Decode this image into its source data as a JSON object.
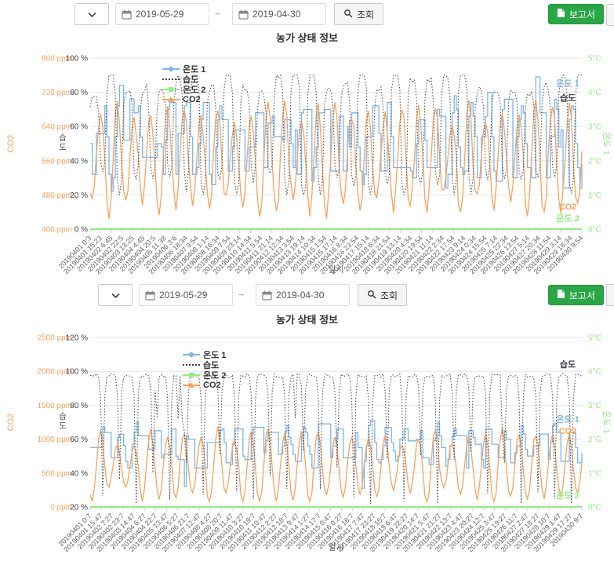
{
  "toolbar": {
    "date_from": "2019-05-29",
    "date_separator": "~",
    "date_to": "2019-04-30",
    "search_label": "조회",
    "report_label": "보고서",
    "report_color": "#28a745"
  },
  "chart_data": [
    {
      "type": "line",
      "title": "농가 상태 정보",
      "xlabel": "일시",
      "grid_color": "#e6e6e6",
      "tick_color": "#ccd6eb",
      "x_label_color": "#666666",
      "points_per_day": 8,
      "num_points": 236,
      "x_categories": [
        "20190401 0:3",
        "20190401 15:23",
        "20190402 6:45",
        "20190402 22:5",
        "20190403 13:25",
        "20190404 4:45",
        "20190404 20:5",
        "20190405 11:38",
        "20190406 3:6",
        "20190406 18:34",
        "20190407 9:54",
        "20190408 1:14",
        "20190408 16:34",
        "20190409 7:54",
        "20190409 23:14",
        "20190410 14:34",
        "20190411 5:54",
        "20190411 21:14",
        "20190412 12:34",
        "20190413 3:54",
        "20190413 19:14",
        "20190414 10:34",
        "20190415 1:54",
        "20190415 17:14",
        "20190416 8:34",
        "20190416 23:54",
        "20190417 15:14",
        "20190418 6:34",
        "20190418 21:54",
        "20190419 13:14",
        "20190420 4:34",
        "20190420 19:54",
        "20190421 11:14",
        "20190422 2:34",
        "20190422 17:54",
        "20190423 9:14",
        "20190424 0:34",
        "20190424 15:54",
        "20190425 7:14",
        "20190425 22:34",
        "20190426 13:54",
        "20190427 5:14",
        "20190427 20:34",
        "20190428 11:54",
        "20190429 3:14",
        "20190429 18:34",
        "20190430 9:54"
      ],
      "y_axes": [
        {
          "id": "co2",
          "side": "left",
          "title": "CO2",
          "color": "#f7a35c",
          "ticks": [
            "800 ppm",
            "720 ppm",
            "640 ppm",
            "560 ppm",
            "480 ppm",
            "400 ppm"
          ],
          "min": 400,
          "max": 800
        },
        {
          "id": "hum",
          "side": "left",
          "title": "습도",
          "color": "#434348",
          "ticks": [
            "100 %",
            "80 %",
            "60 %",
            "40 %",
            "20 %",
            "0 %"
          ],
          "min": 0,
          "max": 100
        },
        {
          "id": "temp",
          "side": "right",
          "title": "온도 1",
          "color": "#90ed7d",
          "ticks": [
            "5°C",
            "4°C",
            "3°C",
            "2°C",
            "1°C",
            "0°C"
          ],
          "min": 0,
          "max": 5
        }
      ],
      "legend": [
        {
          "name": "온도 1",
          "color": "#7cb5ec",
          "marker": "diamond"
        },
        {
          "name": "습도",
          "color": "#434348",
          "marker": "dotted"
        },
        {
          "name": "온도 2",
          "color": "#90ed7d",
          "marker": "square"
        },
        {
          "name": "CO2",
          "color": "#f7a35c",
          "marker": "triangle"
        }
      ],
      "series": [
        {
          "name": "온도 1",
          "axis": "temp",
          "color": "#7cb5ec",
          "style": "step",
          "seed": 11,
          "approx": {
            "base": 2.55,
            "amp": 1.1,
            "phase": -3.14,
            "noise": 0.2,
            "quant": 0.1,
            "spike": 1.2,
            "min": 1.0,
            "max": 4.45
          }
        },
        {
          "name": "CO2",
          "axis": "co2",
          "color": "#f7a35c",
          "style": "sine",
          "seed": 14,
          "approx": {
            "base": 565,
            "amp": 120,
            "phase": -2.3,
            "noise": 15,
            "min": 425,
            "max": 705
          }
        },
        {
          "name": "습도",
          "axis": "hum",
          "color": "#434348",
          "style": "skew",
          "seed": 12,
          "approx": {
            "base": 54,
            "amp": 34,
            "skew": 2.2,
            "duty": 0.35,
            "phase": 0,
            "noise": 3,
            "min": 20,
            "max": 90
          }
        },
        {
          "name": "온도 2",
          "axis": "temp",
          "color": "#90ed7d",
          "style": "flat",
          "seed": 13,
          "approx": {
            "base": 0
          }
        }
      ],
      "series_end_labels": [
        {
          "text": "온도 1",
          "color": "#7cb5ec",
          "yfrac": 0.165
        },
        {
          "text": "습도",
          "color": "#434348",
          "yfrac": 0.25
        },
        {
          "text": "CO2",
          "color": "#f7a35c",
          "yfrac": 0.885
        },
        {
          "text": "온도 2",
          "color": "#90ed7d",
          "yfrac": 0.955
        }
      ]
    },
    {
      "type": "line",
      "title": "농가 상태 정보",
      "xlabel": "일시",
      "grid_color": "#e6e6e6",
      "tick_color": "#ccd6eb",
      "x_label_color": "#666666",
      "points_per_day": 8,
      "num_points": 236,
      "x_categories": [
        "20190401 0:7",
        "20190401 15:47",
        "20190402 7:27",
        "20190402 23:7",
        "20190403 14:47",
        "20190404 6:27",
        "20190404 22:7",
        "20190405 13:47",
        "20190406 5:27",
        "20190406 21:7",
        "20190407 12:47",
        "20190408 4:27",
        "20190408 20:7",
        "20190409 11:47",
        "20190410 3:27",
        "20190410 19:7",
        "20190411 10:47",
        "20190412 2:27",
        "20190412 18:7",
        "20190413 9:47",
        "20190414 1:27",
        "20190414 17:7",
        "20190415 8:47",
        "20190416 0:27",
        "20190416 16:7",
        "20190417 7:47",
        "20190417 23:27",
        "20190418 15:7",
        "20190419 6:47",
        "20190419 22:27",
        "20190420 14:7",
        "20190421 5:47",
        "20190421 21:27",
        "20190422 13:7",
        "20190423 4:47",
        "20190423 20:27",
        "20190424 12:7",
        "20190425 3:47",
        "20190425 19:27",
        "20190426 11:7",
        "20190427 2:47",
        "20190427 18:27",
        "20190428 10:7",
        "20190429 1:47",
        "20190429 17:27",
        "20190430 9:7"
      ],
      "y_axes": [
        {
          "id": "co2",
          "side": "left",
          "title": "CO2",
          "color": "#f7a35c",
          "ticks": [
            "2500 ppm",
            "2000 ppm",
            "1500 ppm",
            "1000 ppm",
            "500 ppm",
            "0 ppm"
          ],
          "min": 0,
          "max": 2500
        },
        {
          "id": "hum",
          "side": "left",
          "title": "습도",
          "color": "#434348",
          "ticks": [
            "120 %",
            "100 %",
            "80 %",
            "60 %",
            "40 %",
            "20 %"
          ],
          "min": 20,
          "max": 120
        },
        {
          "id": "temp",
          "side": "right",
          "title": "온도 1",
          "color": "#90ed7d",
          "ticks": [
            "5°C",
            "4°C",
            "3°C",
            "2°C",
            "1°C",
            "0°C"
          ],
          "min": 0,
          "max": 5
        }
      ],
      "legend": [
        {
          "name": "온도 1",
          "color": "#7cb5ec",
          "marker": "diamond"
        },
        {
          "name": "습도",
          "color": "#434348",
          "marker": "dotted"
        },
        {
          "name": "온도 2",
          "color": "#90ed7d",
          "marker": "square"
        },
        {
          "name": "CO2",
          "color": "#f7a35c",
          "marker": "triangle"
        }
      ],
      "series": [
        {
          "name": "온도 1",
          "axis": "temp",
          "color": "#7cb5ec",
          "style": "step",
          "seed": 21,
          "approx": {
            "base": 1.85,
            "amp": 0.5,
            "phase": -3.14,
            "noise": 0.15,
            "quant": 0.05,
            "spike": -0.8,
            "min": 0.55,
            "max": 2.65
          }
        },
        {
          "name": "CO2",
          "axis": "co2",
          "color": "#f7a35c",
          "style": "sine",
          "seed": 24,
          "approx": {
            "base": 600,
            "amp": 430,
            "phase": -2.3,
            "noise": 35,
            "min": 80,
            "max": 1250
          }
        },
        {
          "name": "습도",
          "axis": "hum",
          "color": "#434348",
          "style": "dips",
          "seed": 22,
          "approx": {
            "base": 97.5,
            "depth": 62,
            "power": 5,
            "phase": -3.14,
            "noise": 1.2,
            "extra": 25,
            "min": 22,
            "max": 100
          }
        },
        {
          "name": "온도 2",
          "axis": "temp",
          "color": "#90ed7d",
          "style": "flat",
          "seed": 23,
          "approx": {
            "base": 0
          }
        }
      ],
      "series_end_labels": [
        {
          "text": "습도",
          "color": "#434348",
          "yfrac": 0.175
        },
        {
          "text": "온도 1",
          "color": "#7cb5ec",
          "yfrac": 0.5
        },
        {
          "text": "CO2",
          "color": "#f7a35c",
          "yfrac": 0.57
        },
        {
          "text": "온도 2",
          "color": "#90ed7d",
          "yfrac": 0.95
        }
      ]
    }
  ]
}
